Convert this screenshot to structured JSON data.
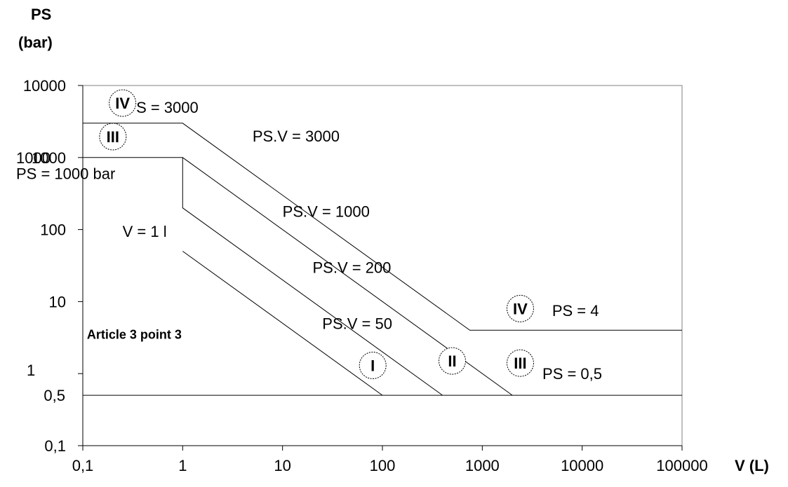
{
  "chart_data": {
    "type": "line",
    "scale": {
      "x": "log",
      "y": "log"
    },
    "xlabel": "V (L)",
    "ylabel_lines": [
      "PS",
      "(bar)"
    ],
    "xlim": [
      0.1,
      100000
    ],
    "ylim": [
      0.1,
      10000
    ],
    "x_ticks": [
      {
        "value": 0.1,
        "label": "0,1"
      },
      {
        "value": 1,
        "label": "1"
      },
      {
        "value": 10,
        "label": "10"
      },
      {
        "value": 100,
        "label": "100"
      },
      {
        "value": 1000,
        "label": "1000"
      },
      {
        "value": 10000,
        "label": "10000"
      },
      {
        "value": 100000,
        "label": "100000"
      }
    ],
    "y_ticks": [
      {
        "value": 0.1,
        "label": "0,1"
      },
      {
        "value": 0.5,
        "label": "0,5"
      },
      {
        "value": 1,
        "label": "1"
      },
      {
        "value": 10,
        "label": "10"
      },
      {
        "value": 100,
        "label": "100"
      },
      {
        "value": 1000,
        "label": "1000"
      },
      {
        "value": 10000,
        "label": "10000"
      }
    ],
    "series": [
      {
        "points": [
          [
            0.1,
            3000
          ],
          [
            1,
            3000
          ],
          [
            750,
            4
          ],
          [
            100000,
            4
          ]
        ]
      },
      {
        "points": [
          [
            0.1,
            1000
          ],
          [
            1,
            1000
          ],
          [
            2000,
            0.5
          ]
        ]
      },
      {
        "points": [
          [
            1,
            1000
          ],
          [
            1,
            200
          ],
          [
            400,
            0.5
          ]
        ]
      },
      {
        "points": [
          [
            1,
            50
          ],
          [
            100,
            0.5
          ]
        ]
      },
      {
        "points": [
          [
            0.1,
            0.5
          ],
          [
            100000,
            0.5
          ]
        ]
      }
    ],
    "annotations": [
      {
        "text": "PS = 3000",
        "x": 0.27,
        "y": 5000
      },
      {
        "text": "PS.V = 3000",
        "x": 5,
        "y": 2000
      },
      {
        "text": "1000",
        "x": 0.1,
        "y": 1000
      },
      {
        "text": "PS = 1000 bar",
        "x": 0.1,
        "y": 600
      },
      {
        "text": "PS.V = 1000",
        "x": 10,
        "y": 180
      },
      {
        "text": "V = 1 l",
        "x": 0.25,
        "y": 95
      },
      {
        "text": "PS.V = 200",
        "x": 20,
        "y": 30
      },
      {
        "text": "PS.V = 50",
        "x": 25,
        "y": 5
      },
      {
        "text": "PS = 4",
        "x": 5000,
        "y": 7.5
      },
      {
        "text": "PS = 0,5",
        "x": 4000,
        "y": 1
      }
    ],
    "region_label": {
      "text": "Article 3 point 3",
      "x": 0.11,
      "y": 3.5
    },
    "category_badges": [
      {
        "text": "IV",
        "x": 0.25,
        "y": 5700
      },
      {
        "text": "III",
        "x": 0.2,
        "y": 1950
      },
      {
        "text": "IV",
        "x": 2400,
        "y": 8
      },
      {
        "text": "I",
        "x": 80,
        "y": 1.3
      },
      {
        "text": "II",
        "x": 500,
        "y": 1.5
      },
      {
        "text": "III",
        "x": 2400,
        "y": 1.4
      }
    ]
  }
}
